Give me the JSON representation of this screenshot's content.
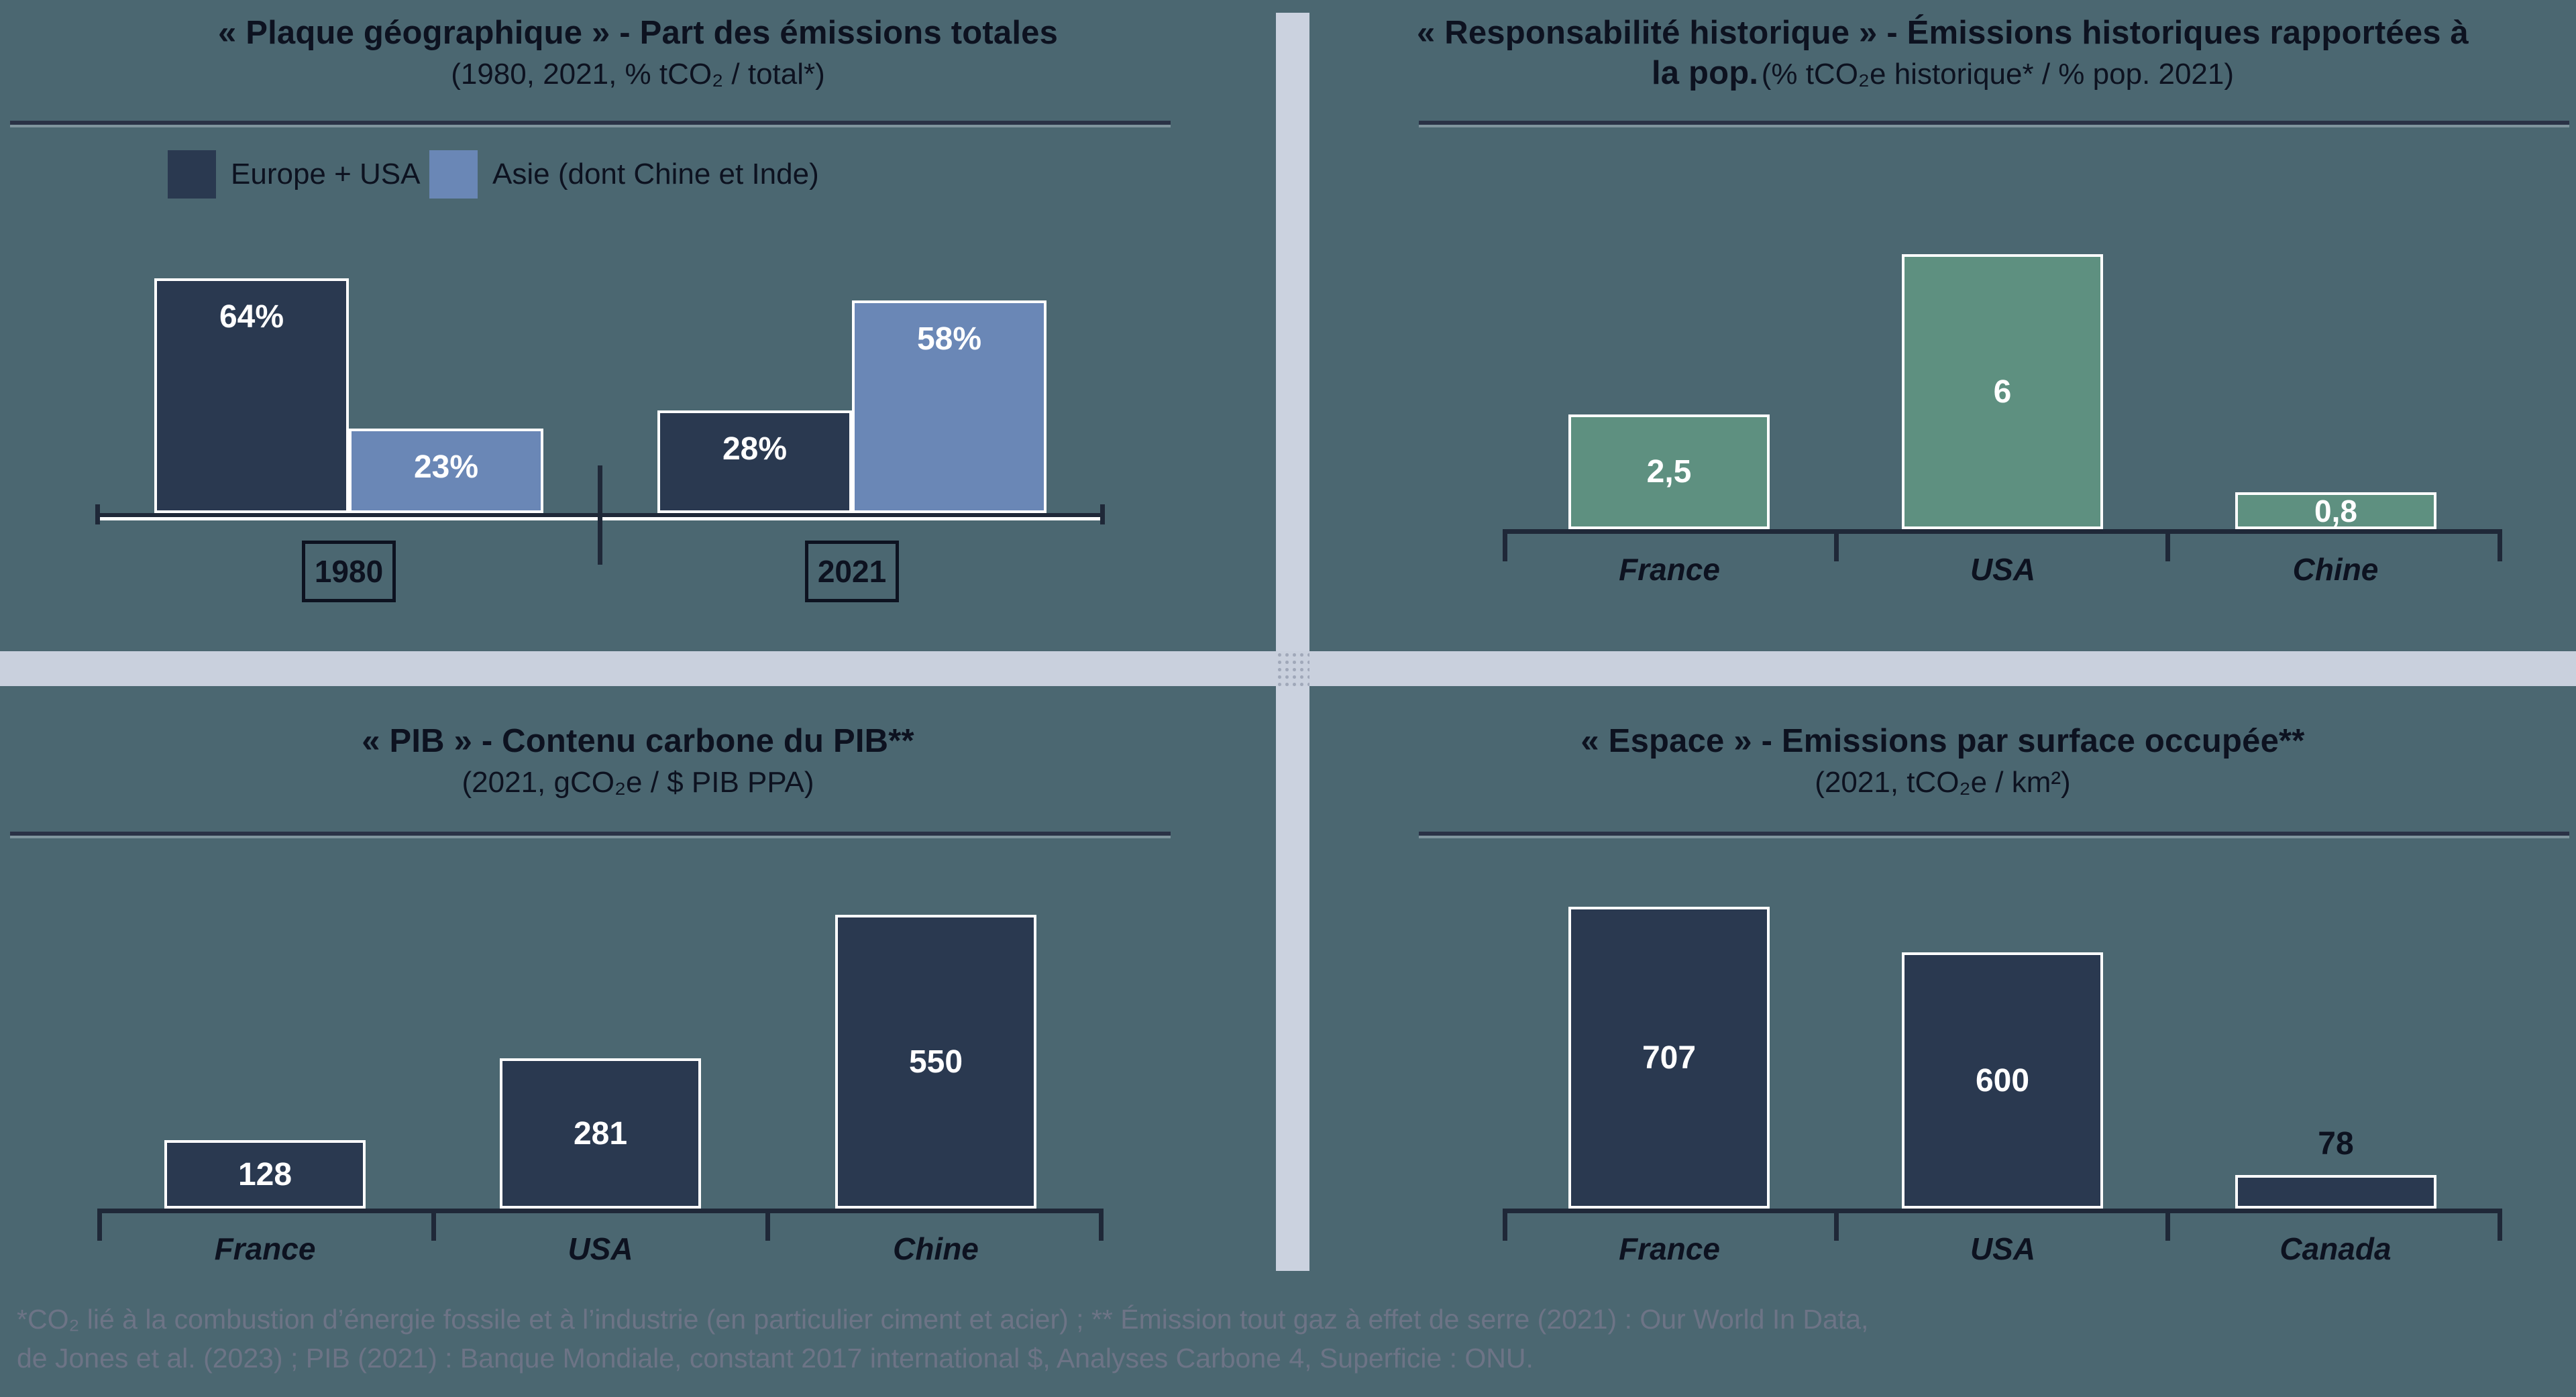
{
  "page": {
    "background_color": "#4b6771",
    "divider_color": "#c9d0dd",
    "dark_navy": "#2a3950",
    "steel_blue": "#6a87b6",
    "sage_green": "#5e9080",
    "footnote_color": "#6d7486"
  },
  "legend": {
    "position": "top-left-quadrant",
    "items": [
      {
        "label": "Europe + USA",
        "color": "#2a3950"
      },
      {
        "label": "Asie (dont Chine et Inde)",
        "color": "#6a87b6"
      }
    ]
  },
  "chart_data": [
    {
      "type": "bar",
      "position": "top-left",
      "title_bold": "« Plaque géographique » - Part des émissions totales",
      "title_normal": "(1980, 2021, % tCO₂ / total*)",
      "categories": [
        "1980",
        "2021"
      ],
      "series": [
        {
          "name": "Europe + USA",
          "color": "#2a3950",
          "values": [
            64,
            28
          ],
          "labels": [
            "64%",
            "28%"
          ]
        },
        {
          "name": "Asie (dont Chine et Inde)",
          "color": "#6a87b6",
          "values": [
            23,
            58
          ],
          "labels": [
            "23%",
            "58%"
          ]
        }
      ],
      "ylim": [
        0,
        70
      ],
      "grid": false
    },
    {
      "type": "bar",
      "position": "top-right",
      "title_bold": "« Responsabilité historique » - Émissions historiques rapportées à la pop.",
      "title_normal": "(% tCO₂e historique* / % pop. 2021)",
      "categories": [
        "France",
        "USA",
        "Chine"
      ],
      "values": [
        2.5,
        6,
        0.8
      ],
      "labels": [
        "2,5",
        "6",
        "0,8"
      ],
      "bar_color": "#5e9080",
      "ylim": [
        0,
        6.5
      ],
      "grid": false
    },
    {
      "type": "bar",
      "position": "bottom-left",
      "title_bold": "« PIB » - Contenu carbone du PIB**",
      "title_normal": "(2021, gCO₂e / $ PIB PPA)",
      "categories": [
        "France",
        "USA",
        "Chine"
      ],
      "values": [
        128,
        281,
        550
      ],
      "labels": [
        "128",
        "281",
        "550"
      ],
      "bar_color": "#2a3950",
      "ylim": [
        0,
        600
      ],
      "grid": false
    },
    {
      "type": "bar",
      "position": "bottom-right",
      "title_bold": "« Espace » - Emissions par surface occupée**",
      "title_normal": "(2021, tCO₂e / km²)",
      "categories": [
        "France",
        "USA",
        "Canada"
      ],
      "values": [
        707,
        600,
        78
      ],
      "labels": [
        "707",
        "600",
        "78"
      ],
      "bar_color": "#2a3950",
      "ylim": [
        0,
        770
      ],
      "grid": false
    }
  ],
  "footnote": {
    "line1": "*CO₂ lié à la combustion d’énergie fossile et à l’industrie (en particulier ciment et acier) ; ** Émission tout gaz à effet de serre (2021) : Our World In Data,",
    "line2": "de Jones et al. (2023) ; PIB (2021) : Banque Mondiale, constant 2017 international $, Analyses Carbone 4, Superficie : ONU."
  }
}
